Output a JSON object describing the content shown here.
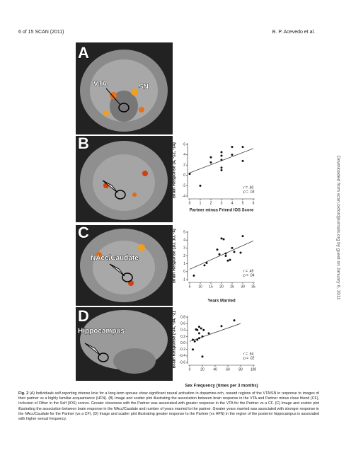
{
  "header": {
    "left": "6 of 15   SCAN (2011)",
    "right": "B. P. Acevedo et al."
  },
  "side_note": "Downloaded from scan.oxfordjournals.org by guest on January 6, 2011",
  "panels": [
    {
      "letter": "A",
      "labels": [
        "VTA",
        "SN"
      ]
    },
    {
      "letter": "B",
      "labels": [],
      "chart": {
        "type": "scatter",
        "y_label": "Brain Response (4, -12, -14)",
        "x_label": "Partner minus Friend IOS Score",
        "annotations": [
          "r = .60",
          "p = .03"
        ],
        "x": [
          0,
          1,
          2,
          2,
          3,
          3,
          3,
          3,
          3,
          4,
          4,
          5,
          5
        ],
        "values": [
          0.3,
          -2,
          3.5,
          2.5,
          4.5,
          3.8,
          3,
          1.5,
          1,
          5.5,
          4,
          5.5,
          2.8
        ],
        "trend": {
          "x": [
            0,
            6
          ],
          "y": [
            0.5,
            5.2
          ]
        },
        "xlim": [
          0,
          6
        ],
        "xticks": [
          0,
          1,
          2,
          3,
          4,
          5,
          6
        ],
        "ylim": [
          -4,
          6
        ],
        "yticks": [
          6,
          4,
          2,
          0,
          -2,
          -4
        ]
      }
    },
    {
      "letter": "C",
      "labels": [
        "NAcc/Caudate"
      ],
      "chart": {
        "type": "scatter",
        "y_label": "Brain Response (10, 10, -4)",
        "x_label": "Years Married",
        "annotations": [
          "r = .49",
          "p = .04"
        ],
        "x": [
          7,
          12,
          13,
          18,
          19,
          20,
          21,
          22,
          22,
          23,
          24,
          25,
          26,
          29,
          30
        ],
        "values": [
          -0.5,
          0.8,
          1.1,
          2.8,
          2.2,
          4.2,
          4.1,
          2.3,
          2,
          1.4,
          1.5,
          3,
          2.5,
          2.4,
          4.5
        ],
        "trend": {
          "x": [
            5,
            35
          ],
          "y": [
            0.3,
            3.9
          ]
        },
        "xlim": [
          5,
          35
        ],
        "xticks": [
          5,
          10,
          15,
          20,
          25,
          30,
          35
        ],
        "ylim": [
          -1,
          5
        ],
        "yticks": [
          5,
          4,
          3,
          2,
          1,
          0,
          -1
        ]
      }
    },
    {
      "letter": "D",
      "labels": [
        "Hippocampus"
      ],
      "chart": {
        "type": "scatter",
        "y_label": "Brain Response (-34, -34, -2)",
        "x_label": "Sex Frequency (times per 3 months)",
        "annotations": [
          "r = .54",
          "p = .02"
        ],
        "x": [
          5,
          5,
          8,
          10,
          12,
          12,
          15,
          15,
          15,
          18,
          20,
          20,
          22,
          30,
          50,
          70
        ],
        "values": [
          0.1,
          -0.2,
          0.05,
          0.42,
          0.4,
          0.1,
          0.5,
          0.3,
          0.15,
          0.45,
          0.2,
          -0.42,
          0.4,
          0.3,
          0.52,
          0.7
        ],
        "trend": {
          "x": [
            0,
            80
          ],
          "y": [
            0.05,
            0.6
          ]
        },
        "xlim": [
          0,
          100
        ],
        "xticks": [
          0,
          20,
          40,
          60,
          80,
          100
        ],
        "ylim": [
          -0.6,
          0.8
        ],
        "yticks": [
          0.8,
          0.6,
          0.4,
          0.2,
          {
            "value": 0,
            "label": "0.0"
          },
          -0.2,
          -0.4,
          -0.6
        ]
      }
    }
  ],
  "caption": {
    "label": "Fig. 2",
    "text": "(A) Individuals self-reporting intense love for a long-term spouse show significant neural activation in dopamine-rich, reward regions of the VTA/SN in response to images of their partner vs a highly familiar acquaintance (HFN). (B) Image and scatter plot illustrating the association between brain response in the VTA and Partner minus close friend (CF), Inclusion of Other in the Self (IOS) scores. Greater closeness with the Partner was associated with greater response in the VTA for the Partner vs a CF. (C) Image and scatter plot illustrating the association between brain response in the NAcc/Caudate and number of years married to the partner. Greater years married was associated with stronger response in the NAcc/Caudate for the Partner (vs a CF). (D) Image and scatter plot illustrating greater response to the Partner (vs HFN) in the region of the posterior hippocampus is associated with higher sexual frequency."
  }
}
